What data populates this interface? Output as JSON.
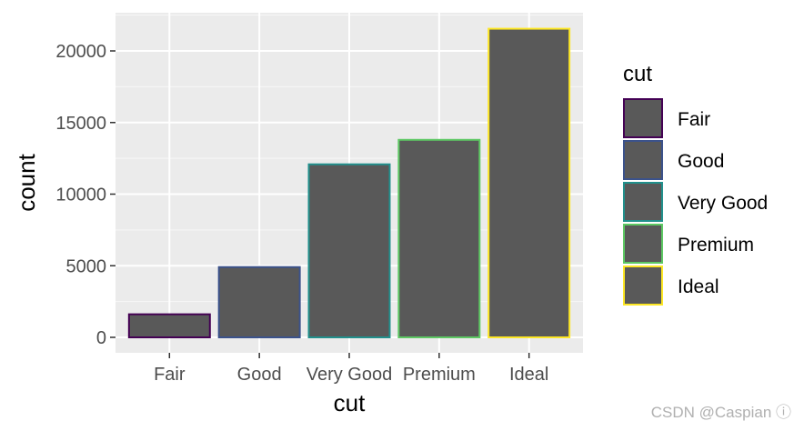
{
  "chart_data": {
    "type": "bar",
    "categories": [
      "Fair",
      "Good",
      "Very Good",
      "Premium",
      "Ideal"
    ],
    "values": [
      1610,
      4906,
      12082,
      13791,
      21551
    ],
    "xlabel": "cut",
    "ylabel": "count",
    "ylim": [
      0,
      22629
    ],
    "yticks": [
      0,
      5000,
      10000,
      15000,
      20000
    ],
    "ytick_labels": [
      "0",
      "5000",
      "10000",
      "15000",
      "20000"
    ],
    "grid": true,
    "fill_color": "#595959",
    "outline_colors": [
      "#440154",
      "#3b528b",
      "#21908c",
      "#5dc863",
      "#fde725"
    ],
    "legend": {
      "title": "cut",
      "position": "right",
      "entries": [
        "Fair",
        "Good",
        "Very Good",
        "Premium",
        "Ideal"
      ]
    }
  },
  "watermark": "CSDN @Caspian ⓘ"
}
